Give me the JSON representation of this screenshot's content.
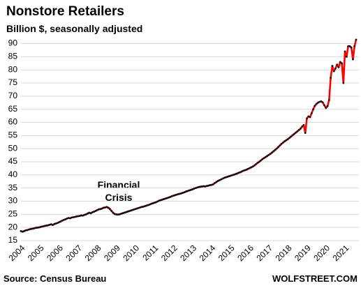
{
  "chart_data": {
    "type": "line",
    "title": "Nonstore Retailers",
    "subtitle": "Billion $, seasonally adjusted",
    "annotation": [
      "Financial",
      "Crisis"
    ],
    "source": "Source: Census Bureau",
    "brand": "WOLFSTREET.COM",
    "categories": [
      "2004",
      null,
      null,
      null,
      null,
      null,
      null,
      null,
      null,
      null,
      null,
      null,
      "2005",
      null,
      null,
      null,
      null,
      null,
      null,
      null,
      null,
      null,
      null,
      null,
      "2006",
      null,
      null,
      null,
      null,
      null,
      null,
      null,
      null,
      null,
      null,
      null,
      "2007",
      null,
      null,
      null,
      null,
      null,
      null,
      null,
      null,
      null,
      null,
      null,
      "2008",
      null,
      null,
      null,
      null,
      null,
      null,
      null,
      null,
      null,
      null,
      null,
      "2009",
      null,
      null,
      null,
      null,
      null,
      null,
      null,
      null,
      null,
      null,
      null,
      "2010",
      null,
      null,
      null,
      null,
      null,
      null,
      null,
      null,
      null,
      null,
      null,
      "2011",
      null,
      null,
      null,
      null,
      null,
      null,
      null,
      null,
      null,
      null,
      null,
      "2012",
      null,
      null,
      null,
      null,
      null,
      null,
      null,
      null,
      null,
      null,
      null,
      "2013",
      null,
      null,
      null,
      null,
      null,
      null,
      null,
      null,
      null,
      null,
      null,
      "2014",
      null,
      null,
      null,
      null,
      null,
      null,
      null,
      null,
      null,
      null,
      null,
      "2015",
      null,
      null,
      null,
      null,
      null,
      null,
      null,
      null,
      null,
      null,
      null,
      "2016",
      null,
      null,
      null,
      null,
      null,
      null,
      null,
      null,
      null,
      null,
      null,
      "2017",
      null,
      null,
      null,
      null,
      null,
      null,
      null,
      null,
      null,
      null,
      null,
      "2018",
      null,
      null,
      null,
      null,
      null,
      null,
      null,
      null,
      null,
      null,
      null,
      "2019",
      null,
      null,
      null,
      null,
      null,
      null,
      null,
      null,
      null,
      null,
      null,
      "2020",
      null,
      null,
      null,
      null,
      null,
      null,
      null,
      null,
      null,
      null,
      null,
      "2021",
      null,
      null,
      null,
      null,
      null,
      null,
      null
    ],
    "series": [
      {
        "color": "#ff0000",
        "marker_color": "#111111",
        "values": [
          18.6,
          18.4,
          18.6,
          18.9,
          19.0,
          19.2,
          19.4,
          19.5,
          19.6,
          19.8,
          19.9,
          20.0,
          20.1,
          20.3,
          20.4,
          20.6,
          20.7,
          20.8,
          21.0,
          21.2,
          20.9,
          21.3,
          21.5,
          21.7,
          22.0,
          22.3,
          22.6,
          22.9,
          23.1,
          23.4,
          23.6,
          23.5,
          23.8,
          23.9,
          24.0,
          24.2,
          24.3,
          24.4,
          24.6,
          24.5,
          24.8,
          25.0,
          25.3,
          25.6,
          25.4,
          25.8,
          26.0,
          26.3,
          26.6,
          26.9,
          27.0,
          27.2,
          27.5,
          27.6,
          27.8,
          27.5,
          27.0,
          26.3,
          25.6,
          25.1,
          25.0,
          24.9,
          25.0,
          25.2,
          25.4,
          25.6,
          25.8,
          26.0,
          26.2,
          26.4,
          26.6,
          26.8,
          27.0,
          27.2,
          27.4,
          27.6,
          27.8,
          27.9,
          28.1,
          28.3,
          28.5,
          28.7,
          29.0,
          29.2,
          29.4,
          29.6,
          29.9,
          30.2,
          30.4,
          30.6,
          30.8,
          31.0,
          31.2,
          31.4,
          31.6,
          31.9,
          32.1,
          32.3,
          32.5,
          32.7,
          32.8,
          33.0,
          33.2,
          33.4,
          33.7,
          33.9,
          34.1,
          34.3,
          34.5,
          34.8,
          35.0,
          35.2,
          35.4,
          35.5,
          35.6,
          35.7,
          35.6,
          35.8,
          35.9,
          36.1,
          36.2,
          36.4,
          36.9,
          37.3,
          37.7,
          38.0,
          38.3,
          38.6,
          38.9,
          39.1,
          39.3,
          39.5,
          39.7,
          39.9,
          40.1,
          40.3,
          40.5,
          40.8,
          41.0,
          41.3,
          41.6,
          41.8,
          42.0,
          42.3,
          42.6,
          42.9,
          43.2,
          43.6,
          44.1,
          44.6,
          45.0,
          45.5,
          46.0,
          46.4,
          46.8,
          47.2,
          47.6,
          48.0,
          48.5,
          49.0,
          49.5,
          50.0,
          50.6,
          51.2,
          51.8,
          52.3,
          52.8,
          53.2,
          53.6,
          54.1,
          54.6,
          55.1,
          55.6,
          56.1,
          56.6,
          57.1,
          57.6,
          58.4,
          59.0,
          56.0,
          61.5,
          62.3,
          62.0,
          63.5,
          65.0,
          66.3,
          67.0,
          67.5,
          67.8,
          68.0,
          67.6,
          66.5,
          65.5,
          66.2,
          68.5,
          77.0,
          81.5,
          79.5,
          80.5,
          82.0,
          81.0,
          83.0,
          82.5,
          75.0,
          87.0,
          85.0,
          89.0,
          89.0,
          88.5,
          84.0,
          89.0,
          91.5
        ]
      }
    ],
    "ylim": [
      15,
      92
    ],
    "yticks": [
      15,
      20,
      25,
      30,
      35,
      40,
      45,
      50,
      55,
      60,
      65,
      70,
      75,
      80,
      85,
      90
    ],
    "grid": true
  }
}
